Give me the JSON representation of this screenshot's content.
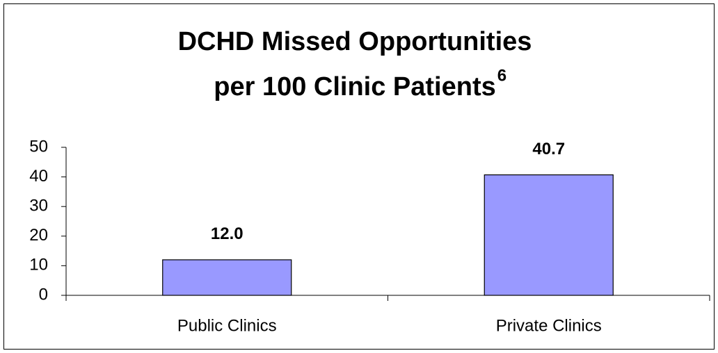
{
  "chart_data": {
    "type": "bar",
    "title": [
      "DCHD Missed Opportunities",
      "per 100 Clinic Patients"
    ],
    "title_superscript": "6",
    "categories": [
      "Public Clinics",
      "Private Clinics"
    ],
    "values": [
      12.0,
      40.7
    ],
    "value_labels": [
      "12.0",
      "40.7"
    ],
    "color": "#9999ff",
    "ylim": [
      0,
      50
    ],
    "yticks": [
      0,
      10,
      20,
      30,
      40,
      50
    ],
    "grid": false
  }
}
